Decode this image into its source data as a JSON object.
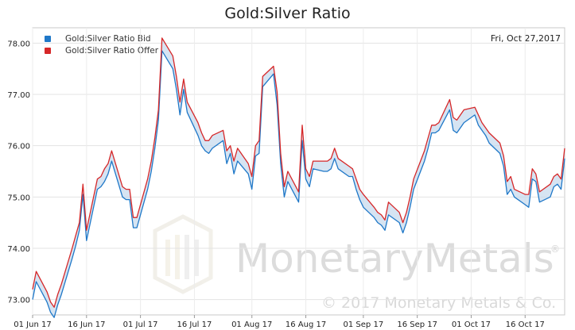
{
  "chart_data": {
    "type": "line",
    "title": "Gold:Silver Ratio",
    "date_label": "Fri, Oct 27,2017",
    "legend_position": "top-left",
    "grid": true,
    "ylim": [
      72.7,
      78.3
    ],
    "y_ticks": [
      "73.00",
      "74.00",
      "75.00",
      "76.00",
      "77.00",
      "78.00"
    ],
    "x_ticks": [
      "01 Jun 17",
      "16 Jun 17",
      "01 Jul 17",
      "16 Jul 17",
      "01 Aug 17",
      "16 Aug 17",
      "01 Sep 17",
      "16 Sep 17",
      "01 Oct 17",
      "16 Oct 17"
    ],
    "x_range": [
      "2017-06-01",
      "2017-10-27"
    ],
    "series": [
      {
        "name": "Gold:Silver Ratio Bid",
        "color": "#1f78c8",
        "x": [
          "2017-06-01",
          "2017-06-02",
          "2017-06-05",
          "2017-06-06",
          "2017-06-07",
          "2017-06-08",
          "2017-06-09",
          "2017-06-12",
          "2017-06-13",
          "2017-06-14",
          "2017-06-15",
          "2017-06-16",
          "2017-06-19",
          "2017-06-20",
          "2017-06-21",
          "2017-06-22",
          "2017-06-23",
          "2017-06-26",
          "2017-06-27",
          "2017-06-28",
          "2017-06-29",
          "2017-06-30",
          "2017-07-03",
          "2017-07-04",
          "2017-07-05",
          "2017-07-06",
          "2017-07-07",
          "2017-07-10",
          "2017-07-11",
          "2017-07-12",
          "2017-07-13",
          "2017-07-14",
          "2017-07-17",
          "2017-07-18",
          "2017-07-19",
          "2017-07-20",
          "2017-07-21",
          "2017-07-24",
          "2017-07-25",
          "2017-07-26",
          "2017-07-27",
          "2017-07-28",
          "2017-07-31",
          "2017-08-01",
          "2017-08-02",
          "2017-08-03",
          "2017-08-04",
          "2017-08-07",
          "2017-08-08",
          "2017-08-09",
          "2017-08-10",
          "2017-08-11",
          "2017-08-14",
          "2017-08-15",
          "2017-08-16",
          "2017-08-17",
          "2017-08-18",
          "2017-08-21",
          "2017-08-22",
          "2017-08-23",
          "2017-08-24",
          "2017-08-25",
          "2017-08-28",
          "2017-08-29",
          "2017-08-30",
          "2017-08-31",
          "2017-09-01",
          "2017-09-04",
          "2017-09-05",
          "2017-09-06",
          "2017-09-07",
          "2017-09-08",
          "2017-09-11",
          "2017-09-12",
          "2017-09-13",
          "2017-09-14",
          "2017-09-15",
          "2017-09-18",
          "2017-09-19",
          "2017-09-20",
          "2017-09-21",
          "2017-09-22",
          "2017-09-25",
          "2017-09-26",
          "2017-09-27",
          "2017-09-28",
          "2017-09-29",
          "2017-10-02",
          "2017-10-03",
          "2017-10-04",
          "2017-10-05",
          "2017-10-06",
          "2017-10-09",
          "2017-10-10",
          "2017-10-11",
          "2017-10-12",
          "2017-10-13",
          "2017-10-16",
          "2017-10-17",
          "2017-10-18",
          "2017-10-19",
          "2017-10-20",
          "2017-10-23",
          "2017-10-24",
          "2017-10-25",
          "2017-10-26",
          "2017-10-27"
        ],
        "values": [
          73.0,
          73.35,
          72.95,
          72.75,
          72.65,
          72.9,
          73.1,
          73.8,
          74.05,
          74.35,
          75.05,
          74.15,
          75.15,
          75.2,
          75.3,
          75.45,
          75.7,
          75.0,
          74.95,
          74.95,
          74.4,
          74.4,
          75.15,
          75.5,
          75.95,
          76.5,
          77.85,
          77.5,
          77.1,
          76.6,
          77.1,
          76.65,
          76.2,
          76.0,
          75.9,
          75.85,
          75.95,
          76.1,
          75.65,
          75.85,
          75.45,
          75.7,
          75.45,
          75.15,
          75.8,
          75.85,
          77.15,
          77.4,
          76.8,
          75.65,
          75.0,
          75.3,
          74.9,
          76.1,
          75.35,
          75.2,
          75.55,
          75.5,
          75.5,
          75.55,
          75.75,
          75.55,
          75.4,
          75.4,
          75.15,
          74.95,
          74.8,
          74.6,
          74.5,
          74.45,
          74.35,
          74.65,
          74.5,
          74.3,
          74.5,
          74.8,
          75.15,
          75.7,
          75.95,
          76.25,
          76.25,
          76.3,
          76.7,
          76.3,
          76.25,
          76.35,
          76.45,
          76.6,
          76.4,
          76.3,
          76.2,
          76.05,
          75.85,
          75.6,
          75.05,
          75.15,
          75.0,
          74.85,
          74.8,
          75.35,
          75.3,
          74.9,
          75.0,
          75.2,
          75.25,
          75.15,
          75.75
        ]
      },
      {
        "name": "Gold:Silver Ratio Offer",
        "color": "#d62728",
        "x": [
          "2017-06-01",
          "2017-06-02",
          "2017-06-05",
          "2017-06-06",
          "2017-06-07",
          "2017-06-08",
          "2017-06-09",
          "2017-06-12",
          "2017-06-13",
          "2017-06-14",
          "2017-06-15",
          "2017-06-16",
          "2017-06-19",
          "2017-06-20",
          "2017-06-21",
          "2017-06-22",
          "2017-06-23",
          "2017-06-26",
          "2017-06-27",
          "2017-06-28",
          "2017-06-29",
          "2017-06-30",
          "2017-07-03",
          "2017-07-04",
          "2017-07-05",
          "2017-07-06",
          "2017-07-07",
          "2017-07-10",
          "2017-07-11",
          "2017-07-12",
          "2017-07-13",
          "2017-07-14",
          "2017-07-17",
          "2017-07-18",
          "2017-07-19",
          "2017-07-20",
          "2017-07-21",
          "2017-07-24",
          "2017-07-25",
          "2017-07-26",
          "2017-07-27",
          "2017-07-28",
          "2017-07-31",
          "2017-08-01",
          "2017-08-02",
          "2017-08-03",
          "2017-08-04",
          "2017-08-07",
          "2017-08-08",
          "2017-08-09",
          "2017-08-10",
          "2017-08-11",
          "2017-08-14",
          "2017-08-15",
          "2017-08-16",
          "2017-08-17",
          "2017-08-18",
          "2017-08-21",
          "2017-08-22",
          "2017-08-23",
          "2017-08-24",
          "2017-08-25",
          "2017-08-28",
          "2017-08-29",
          "2017-08-30",
          "2017-08-31",
          "2017-09-01",
          "2017-09-04",
          "2017-09-05",
          "2017-09-06",
          "2017-09-07",
          "2017-09-08",
          "2017-09-11",
          "2017-09-12",
          "2017-09-13",
          "2017-09-14",
          "2017-09-15",
          "2017-09-18",
          "2017-09-19",
          "2017-09-20",
          "2017-09-21",
          "2017-09-22",
          "2017-09-25",
          "2017-09-26",
          "2017-09-27",
          "2017-09-28",
          "2017-09-29",
          "2017-10-02",
          "2017-10-03",
          "2017-10-04",
          "2017-10-05",
          "2017-10-06",
          "2017-10-09",
          "2017-10-10",
          "2017-10-11",
          "2017-10-12",
          "2017-10-13",
          "2017-10-16",
          "2017-10-17",
          "2017-10-18",
          "2017-10-19",
          "2017-10-20",
          "2017-10-23",
          "2017-10-24",
          "2017-10-25",
          "2017-10-26",
          "2017-10-27"
        ],
        "values": [
          73.2,
          73.55,
          73.15,
          72.95,
          72.85,
          73.1,
          73.3,
          74.0,
          74.25,
          74.5,
          75.25,
          74.35,
          75.35,
          75.4,
          75.55,
          75.65,
          75.9,
          75.2,
          75.15,
          75.15,
          74.6,
          74.6,
          75.35,
          75.7,
          76.15,
          76.7,
          78.1,
          77.75,
          77.35,
          76.85,
          77.3,
          76.85,
          76.45,
          76.25,
          76.1,
          76.1,
          76.2,
          76.3,
          75.9,
          76.0,
          75.7,
          75.95,
          75.65,
          75.4,
          76.0,
          76.1,
          77.35,
          77.55,
          77.05,
          75.85,
          75.2,
          75.5,
          75.1,
          76.4,
          75.55,
          75.4,
          75.7,
          75.7,
          75.7,
          75.75,
          75.95,
          75.75,
          75.6,
          75.55,
          75.35,
          75.15,
          75.05,
          74.8,
          74.7,
          74.65,
          74.55,
          74.9,
          74.7,
          74.5,
          74.7,
          75.0,
          75.35,
          75.9,
          76.15,
          76.4,
          76.4,
          76.45,
          76.9,
          76.55,
          76.5,
          76.6,
          76.7,
          76.75,
          76.6,
          76.45,
          76.35,
          76.25,
          76.05,
          75.8,
          75.3,
          75.4,
          75.15,
          75.05,
          75.05,
          75.55,
          75.45,
          75.1,
          75.25,
          75.4,
          75.45,
          75.35,
          75.95
        ]
      }
    ],
    "watermark": {
      "brand": "MonetaryMetals",
      "copyright": "© 2017 Monetary Metals & Co.",
      "registered": "®"
    }
  }
}
